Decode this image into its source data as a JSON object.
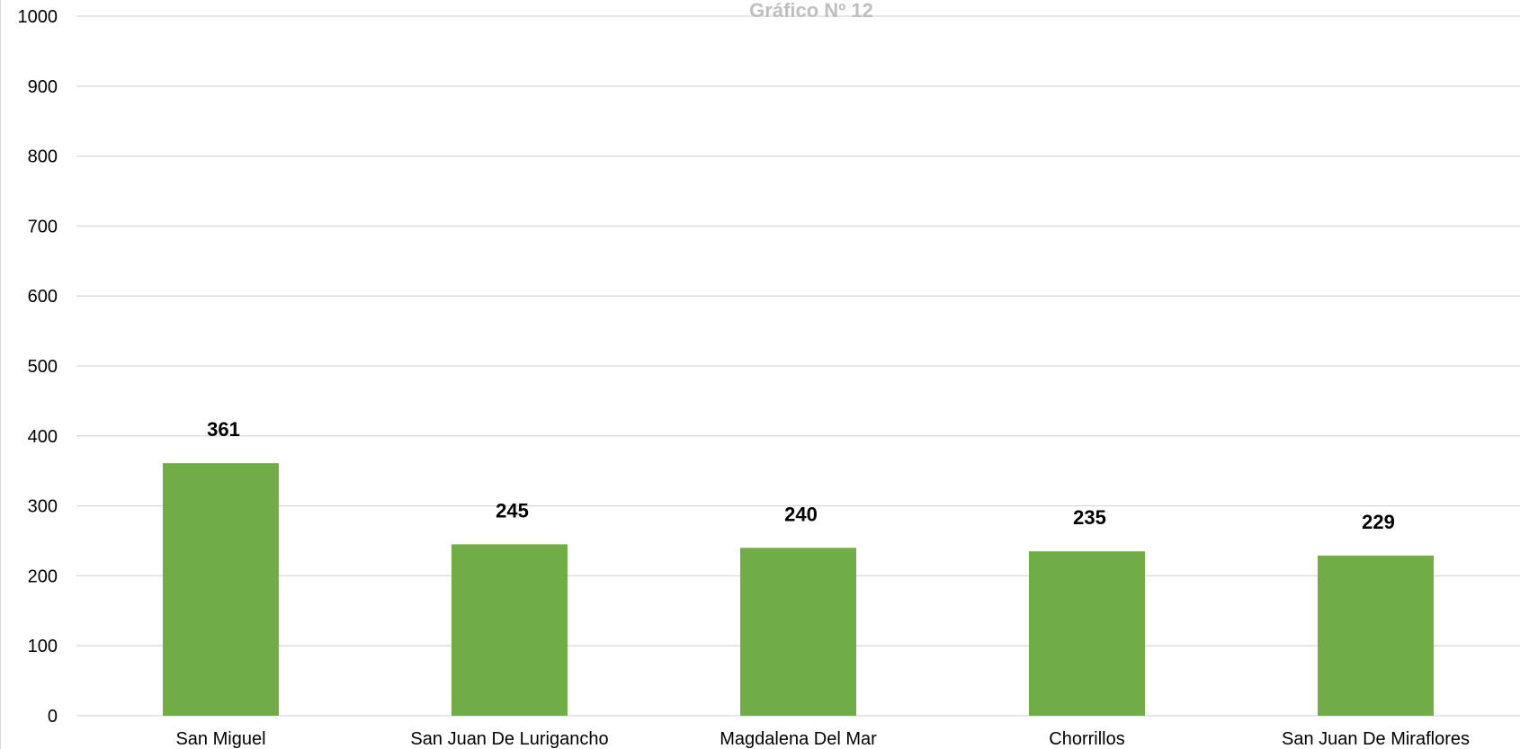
{
  "chart_data": {
    "type": "bar",
    "title": "Gráfico Nº 12",
    "categories": [
      "San Miguel",
      "San Juan De Lurigancho",
      "Magdalena Del Mar",
      "Chorrillos",
      "San Juan De Miraflores"
    ],
    "values": [
      361,
      245,
      240,
      235,
      229
    ],
    "data_labels": [
      "361",
      "245",
      "240",
      "235",
      "229"
    ],
    "ylim": [
      0,
      1000
    ],
    "yticks": [
      0,
      100,
      200,
      300,
      400,
      500,
      600,
      700,
      800,
      900,
      1000
    ],
    "xlabel": "",
    "ylabel": "",
    "grid": true,
    "legend": "none",
    "bar_color": "#70ad47",
    "gridline_color": "#d9d9d9",
    "title_color": "#bfbfbf"
  }
}
